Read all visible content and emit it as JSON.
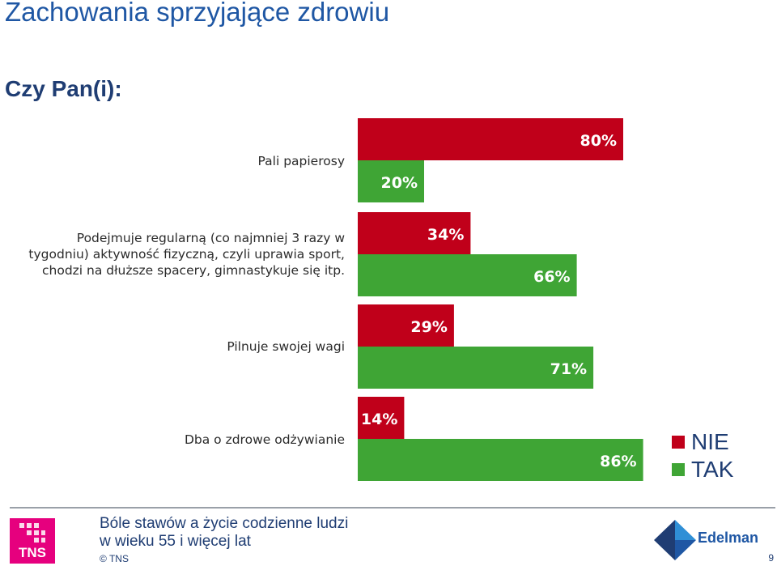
{
  "header": {
    "title": "Zachowania sprzyjające zdrowiu",
    "question": "Czy Pan(i):"
  },
  "chart_data": {
    "type": "bar",
    "orientation": "horizontal",
    "categories": [
      "Pali papierosy",
      "Podejmuje regularną (co najmniej 3 razy w\ntygodniu) aktywność fizyczną, czyli uprawia sport,\nchodzi na dłuższe spacery, gimnastykuje się itp.",
      "Pilnuje swojej wagi",
      "Dba o zdrowe odżywianie"
    ],
    "series": [
      {
        "name": "NIE",
        "values": [
          80,
          34,
          29,
          14
        ],
        "labels": [
          "80%",
          "34%",
          "29%",
          "14%"
        ],
        "color": "#c0001a"
      },
      {
        "name": "TAK",
        "values": [
          20,
          66,
          71,
          86
        ],
        "labels": [
          "20%",
          "66%",
          "71%",
          "86%"
        ],
        "color": "#3fa535"
      }
    ],
    "xlim": [
      0,
      100
    ],
    "legend_position": "bottom-right",
    "grid": false
  },
  "footer": {
    "text": "Bóle stawów a życie codzienne ludzi\nw wieku 55 i więcej lat",
    "copyright": "© TNS",
    "page_number": "9",
    "logo_left": "TNS",
    "logo_right": "Edelman"
  }
}
